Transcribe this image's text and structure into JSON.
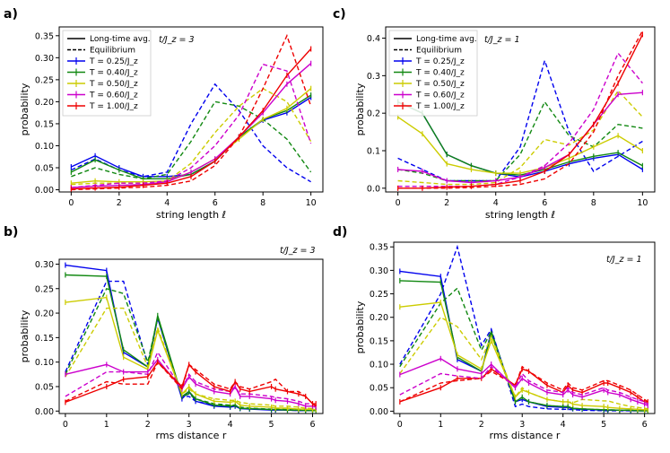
{
  "chart_data": [
    {
      "panel": "a)",
      "type": "line",
      "xlabel": "string length ℓ",
      "ylabel": "probability",
      "xlim": [
        -0.5,
        10.5
      ],
      "ylim": [
        -0.005,
        0.37
      ],
      "xticks": [
        "0",
        "2",
        "4",
        "6",
        "8",
        "10"
      ],
      "yticks": [
        "0.00",
        "0.05",
        "0.10",
        "0.15",
        "0.20",
        "0.25",
        "0.30",
        "0.35"
      ],
      "annotation": "t/J_z = 3",
      "legend": {
        "placement": "top-left",
        "entries": [
          "Long-time avg.",
          "Equilibrium",
          "T = 0.25/J_z",
          "T = 0.40/J_z",
          "T = 0.50/J_z",
          "T = 0.60/J_z",
          "T = 1.00/J_z"
        ]
      },
      "x": [
        0,
        1,
        2,
        3,
        4,
        5,
        6,
        7,
        8,
        9,
        10
      ],
      "series": [
        {
          "name": "T = 0.25/J_z",
          "color": "#0000ee",
          "longtime": [
            0.052,
            0.077,
            0.05,
            0.03,
            0.03,
            0.035,
            0.065,
            0.12,
            0.158,
            0.175,
            0.21
          ],
          "equilibrium": [
            0.045,
            0.07,
            0.045,
            0.03,
            0.04,
            0.15,
            0.24,
            0.18,
            0.1,
            0.05,
            0.018
          ]
        },
        {
          "name": "T = 0.40/J_z",
          "color": "#118811",
          "longtime": [
            0.04,
            0.068,
            0.045,
            0.025,
            0.025,
            0.035,
            0.065,
            0.12,
            0.16,
            0.18,
            0.215
          ],
          "equilibrium": [
            0.03,
            0.05,
            0.035,
            0.025,
            0.035,
            0.11,
            0.2,
            0.19,
            0.16,
            0.115,
            0.04
          ]
        },
        {
          "name": "T = 0.50/J_z",
          "color": "#cccc00",
          "longtime": [
            0.015,
            0.02,
            0.018,
            0.018,
            0.02,
            0.04,
            0.07,
            0.115,
            0.16,
            0.185,
            0.23
          ],
          "equilibrium": [
            0.012,
            0.015,
            0.015,
            0.015,
            0.02,
            0.06,
            0.13,
            0.19,
            0.23,
            0.2,
            0.11
          ]
        },
        {
          "name": "T = 0.60/J_z",
          "color": "#cc00cc",
          "longtime": [
            0.005,
            0.008,
            0.01,
            0.012,
            0.018,
            0.04,
            0.07,
            0.12,
            0.175,
            0.24,
            0.287
          ],
          "equilibrium": [
            0.005,
            0.01,
            0.015,
            0.015,
            0.02,
            0.05,
            0.1,
            0.17,
            0.285,
            0.27,
            0.105
          ]
        },
        {
          "name": "T = 1.00/J_z",
          "color": "#ee0000",
          "longtime": [
            0.002,
            0.004,
            0.006,
            0.01,
            0.015,
            0.03,
            0.065,
            0.12,
            0.18,
            0.26,
            0.32
          ],
          "equilibrium": [
            0.0,
            0.002,
            0.004,
            0.006,
            0.01,
            0.02,
            0.055,
            0.12,
            0.23,
            0.35,
            0.19
          ]
        }
      ]
    },
    {
      "panel": "c)",
      "type": "line",
      "xlabel": "string length ℓ",
      "ylabel": "probability",
      "xlim": [
        -0.5,
        10.5
      ],
      "ylim": [
        -0.01,
        0.43
      ],
      "xticks": [
        "0",
        "2",
        "4",
        "6",
        "8",
        "10"
      ],
      "yticks": [
        "0.0",
        "0.1",
        "0.2",
        "0.3",
        "0.4"
      ],
      "annotation": "t/J_z = 1",
      "legend": {
        "placement": "top-left",
        "entries": [
          "Long-time avg.",
          "Equilibrium",
          "T = 0.25/J_z",
          "T = 0.40/J_z",
          "T = 0.50/J_z",
          "T = 0.60/J_z",
          "T = 1.00/J_z"
        ]
      },
      "x": [
        0,
        1,
        2,
        3,
        4,
        5,
        6,
        7,
        8,
        9,
        10
      ],
      "series": [
        {
          "name": "T = 0.25/J_z",
          "color": "#0000ee",
          "longtime": [
            0.23,
            0.2,
            0.09,
            0.06,
            0.04,
            0.03,
            0.045,
            0.065,
            0.08,
            0.09,
            0.05
          ],
          "equilibrium": [
            0.08,
            0.05,
            0.02,
            0.02,
            0.02,
            0.11,
            0.34,
            0.15,
            0.045,
            0.085,
            0.125
          ]
        },
        {
          "name": "T = 0.40/J_z",
          "color": "#118811",
          "longtime": [
            0.23,
            0.2,
            0.09,
            0.06,
            0.04,
            0.035,
            0.05,
            0.07,
            0.085,
            0.095,
            0.06
          ],
          "equilibrium": [
            0.05,
            0.04,
            0.02,
            0.02,
            0.02,
            0.09,
            0.23,
            0.14,
            0.11,
            0.17,
            0.16
          ]
        },
        {
          "name": "T = 0.50/J_z",
          "color": "#cccc00",
          "longtime": [
            0.19,
            0.145,
            0.065,
            0.05,
            0.04,
            0.04,
            0.055,
            0.08,
            0.11,
            0.14,
            0.1
          ],
          "equilibrium": [
            0.02,
            0.015,
            0.01,
            0.01,
            0.015,
            0.055,
            0.13,
            0.115,
            0.155,
            0.26,
            0.19
          ]
        },
        {
          "name": "T = 0.60/J_z",
          "color": "#cc00cc",
          "longtime": [
            0.05,
            0.045,
            0.02,
            0.015,
            0.02,
            0.03,
            0.055,
            0.09,
            0.17,
            0.25,
            0.255
          ],
          "equilibrium": [
            0.005,
            0.005,
            0.005,
            0.005,
            0.01,
            0.03,
            0.06,
            0.12,
            0.21,
            0.36,
            0.28
          ]
        },
        {
          "name": "T = 1.00/J_z",
          "color": "#ee0000",
          "longtime": [
            0.0,
            0.0,
            0.003,
            0.005,
            0.01,
            0.02,
            0.045,
            0.09,
            0.17,
            0.28,
            0.41
          ],
          "equilibrium": [
            0.0,
            0.0,
            0.0,
            0.002,
            0.005,
            0.01,
            0.025,
            0.065,
            0.15,
            0.3,
            0.42
          ]
        }
      ]
    },
    {
      "panel": "b)",
      "type": "line",
      "xlabel": "rms distance r",
      "ylabel": "probability",
      "xlim": [
        -0.15,
        6.25
      ],
      "ylim": [
        -0.005,
        0.31
      ],
      "xticks": [
        "0",
        "1",
        "2",
        "3",
        "4",
        "5",
        "6"
      ],
      "yticks": [
        "0.00",
        "0.05",
        "0.10",
        "0.15",
        "0.20",
        "0.25",
        "0.30"
      ],
      "annotation": "t/J_z = 3",
      "x": [
        0.0,
        1.0,
        1.41,
        2.0,
        2.24,
        2.83,
        3.0,
        3.16,
        3.61,
        4.0,
        4.12,
        4.24,
        4.47,
        5.0,
        5.1,
        5.39,
        5.66,
        5.83,
        6.0,
        6.08
      ],
      "series": [
        {
          "name": "T = 0.25/J_z",
          "color": "#0000ee",
          "longtime": [
            0.298,
            0.287,
            0.12,
            0.09,
            0.19,
            0.025,
            0.04,
            0.02,
            0.01,
            0.008,
            0.01,
            0.005,
            0.004,
            0.002,
            0.002,
            0.002,
            0.001,
            0.001,
            0.001,
            0.001
          ],
          "equilibrium": [
            0.08,
            0.265,
            0.265,
            0.095,
            0.19,
            0.03,
            0.03,
            0.02,
            0.012,
            0.01,
            0.01,
            0.006,
            0.005,
            0.003,
            0.003,
            0.002,
            0.001,
            0.001,
            0.001,
            0.001
          ]
        },
        {
          "name": "T = 0.40/J_z",
          "color": "#118811",
          "longtime": [
            0.278,
            0.275,
            0.125,
            0.09,
            0.195,
            0.03,
            0.04,
            0.025,
            0.012,
            0.01,
            0.012,
            0.006,
            0.005,
            0.003,
            0.003,
            0.002,
            0.002,
            0.001,
            0.001,
            0.001
          ],
          "equilibrium": [
            0.075,
            0.25,
            0.24,
            0.1,
            0.19,
            0.03,
            0.035,
            0.025,
            0.015,
            0.012,
            0.012,
            0.008,
            0.006,
            0.004,
            0.004,
            0.003,
            0.002,
            0.002,
            0.001,
            0.001
          ]
        },
        {
          "name": "T = 0.50/J_z",
          "color": "#cccc00",
          "longtime": [
            0.222,
            0.232,
            0.11,
            0.085,
            0.165,
            0.035,
            0.05,
            0.035,
            0.02,
            0.018,
            0.02,
            0.012,
            0.01,
            0.008,
            0.006,
            0.006,
            0.004,
            0.004,
            0.003,
            0.003
          ],
          "equilibrium": [
            0.07,
            0.21,
            0.21,
            0.09,
            0.17,
            0.035,
            0.045,
            0.035,
            0.025,
            0.022,
            0.022,
            0.018,
            0.015,
            0.012,
            0.01,
            0.01,
            0.008,
            0.006,
            0.005,
            0.005
          ]
        },
        {
          "name": "T = 0.60/J_z",
          "color": "#cc00cc",
          "longtime": [
            0.075,
            0.095,
            0.08,
            0.08,
            0.105,
            0.045,
            0.07,
            0.055,
            0.04,
            0.035,
            0.05,
            0.03,
            0.03,
            0.025,
            0.022,
            0.02,
            0.015,
            0.01,
            0.01,
            0.008
          ],
          "equilibrium": [
            0.03,
            0.08,
            0.08,
            0.075,
            0.12,
            0.045,
            0.075,
            0.06,
            0.045,
            0.04,
            0.05,
            0.035,
            0.035,
            0.03,
            0.028,
            0.025,
            0.02,
            0.015,
            0.015,
            0.01
          ]
        },
        {
          "name": "T = 1.00/J_z",
          "color": "#ee0000",
          "longtime": [
            0.018,
            0.05,
            0.065,
            0.07,
            0.1,
            0.05,
            0.095,
            0.08,
            0.05,
            0.04,
            0.06,
            0.045,
            0.04,
            0.05,
            0.045,
            0.04,
            0.035,
            0.03,
            0.015,
            0.015
          ],
          "equilibrium": [
            0.02,
            0.06,
            0.055,
            0.055,
            0.1,
            0.045,
            0.095,
            0.085,
            0.055,
            0.045,
            0.06,
            0.05,
            0.045,
            0.06,
            0.065,
            0.04,
            0.04,
            0.03,
            0.015,
            0.01
          ]
        }
      ]
    },
    {
      "panel": "d)",
      "type": "line",
      "xlabel": "rms distance r",
      "ylabel": "probability",
      "xlim": [
        -0.15,
        6.25
      ],
      "ylim": [
        -0.005,
        0.36
      ],
      "xticks": [
        "0",
        "1",
        "2",
        "3",
        "4",
        "5",
        "6"
      ],
      "yticks": [
        "0.00",
        "0.05",
        "0.10",
        "0.15",
        "0.20",
        "0.25",
        "0.30",
        "0.35"
      ],
      "annotation": "t/J_z = 1",
      "x": [
        0.0,
        1.0,
        1.41,
        2.0,
        2.24,
        2.83,
        3.0,
        3.16,
        3.61,
        4.0,
        4.12,
        4.24,
        4.47,
        5.0,
        5.1,
        5.39,
        5.66,
        5.83,
        6.0,
        6.08
      ],
      "series": [
        {
          "name": "T = 0.25/J_z",
          "color": "#0000ee",
          "longtime": [
            0.298,
            0.287,
            0.11,
            0.085,
            0.17,
            0.02,
            0.025,
            0.02,
            0.01,
            0.008,
            0.008,
            0.005,
            0.004,
            0.002,
            0.002,
            0.002,
            0.001,
            0.001,
            0.001,
            0.001
          ],
          "equilibrium": [
            0.1,
            0.25,
            0.35,
            0.14,
            0.175,
            0.01,
            0.015,
            0.01,
            0.005,
            0.004,
            0.004,
            0.003,
            0.002,
            0.001,
            0.001,
            0.001,
            0.001,
            0.001,
            0.001,
            0.001
          ]
        },
        {
          "name": "T = 0.40/J_z",
          "color": "#118811",
          "longtime": [
            0.278,
            0.275,
            0.115,
            0.085,
            0.165,
            0.02,
            0.03,
            0.02,
            0.012,
            0.01,
            0.01,
            0.006,
            0.005,
            0.003,
            0.003,
            0.002,
            0.002,
            0.001,
            0.001,
            0.001
          ],
          "equilibrium": [
            0.095,
            0.23,
            0.262,
            0.13,
            0.17,
            0.02,
            0.03,
            0.02,
            0.012,
            0.01,
            0.01,
            0.006,
            0.005,
            0.003,
            0.003,
            0.002,
            0.002,
            0.001,
            0.001,
            0.001
          ]
        },
        {
          "name": "T = 0.50/J_z",
          "color": "#cccc00",
          "longtime": [
            0.222,
            0.232,
            0.12,
            0.09,
            0.15,
            0.03,
            0.045,
            0.04,
            0.025,
            0.02,
            0.02,
            0.015,
            0.012,
            0.01,
            0.008,
            0.006,
            0.005,
            0.004,
            0.003,
            0.003
          ],
          "equilibrium": [
            0.08,
            0.2,
            0.18,
            0.11,
            0.16,
            0.03,
            0.05,
            0.04,
            0.025,
            0.02,
            0.02,
            0.018,
            0.025,
            0.022,
            0.022,
            0.015,
            0.01,
            0.008,
            0.006,
            0.005
          ]
        },
        {
          "name": "T = 1.00/J_z",
          "color": "#ee0000",
          "longtime": [
            0.02,
            0.05,
            0.07,
            0.07,
            0.09,
            0.055,
            0.09,
            0.085,
            0.055,
            0.04,
            0.055,
            0.045,
            0.04,
            0.06,
            0.06,
            0.05,
            0.04,
            0.03,
            0.02,
            0.02
          ],
          "equilibrium": [
            0.02,
            0.06,
            0.065,
            0.07,
            0.085,
            0.055,
            0.095,
            0.085,
            0.06,
            0.045,
            0.06,
            0.05,
            0.045,
            0.065,
            0.065,
            0.055,
            0.045,
            0.035,
            0.025,
            0.02
          ]
        },
        {
          "name": "T = 0.60/J_z",
          "color": "#cc00cc",
          "longtime": [
            0.078,
            0.112,
            0.09,
            0.08,
            0.1,
            0.05,
            0.07,
            0.06,
            0.04,
            0.035,
            0.045,
            0.035,
            0.03,
            0.045,
            0.04,
            0.035,
            0.025,
            0.02,
            0.015,
            0.012
          ],
          "equilibrium": [
            0.035,
            0.08,
            0.075,
            0.07,
            0.095,
            0.05,
            0.08,
            0.065,
            0.045,
            0.04,
            0.05,
            0.04,
            0.035,
            0.05,
            0.045,
            0.04,
            0.03,
            0.025,
            0.02,
            0.015
          ]
        }
      ]
    }
  ]
}
